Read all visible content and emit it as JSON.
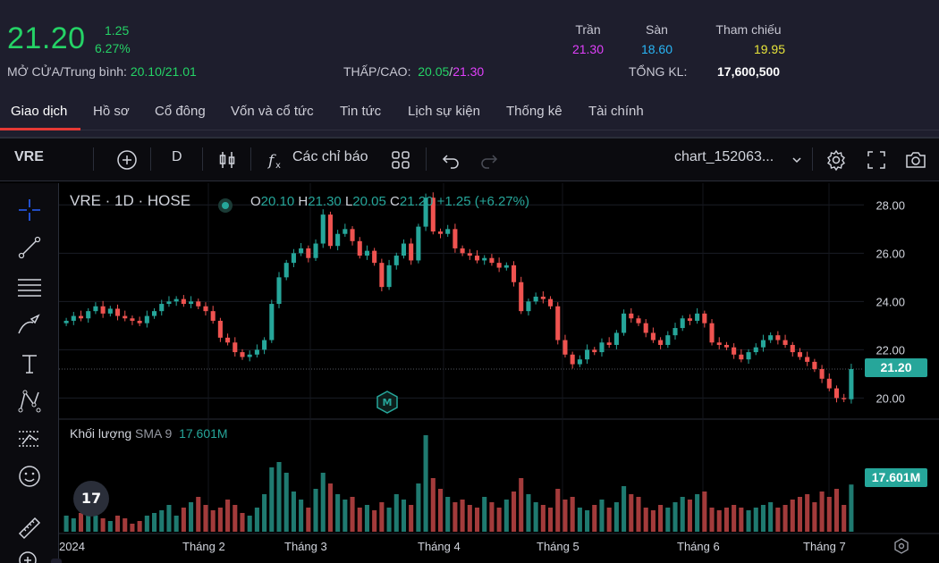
{
  "quote": {
    "price": "21.20",
    "change": "1.25",
    "change_pct": "6.27%",
    "open_avg_label": "MỞ CỬA/Trung bình:",
    "open": "20.10",
    "avg": "21.01",
    "lowhigh_label": "THẤP/CAO:",
    "low": "20.05",
    "high": "21.30",
    "ceiling_label": "Trần",
    "ceiling": "21.30",
    "floor_label": "Sàn",
    "floor": "18.60",
    "ref_label": "Tham chiếu",
    "ref": "19.95",
    "volume_label": "TỔNG KL:",
    "volume": "17,600,500"
  },
  "tabs": [
    "Giao dịch",
    "Hồ sơ",
    "Cổ đông",
    "Vốn và cổ tức",
    "Tin tức",
    "Lịch sự kiện",
    "Thống kê",
    "Tài chính"
  ],
  "toolbar": {
    "symbol": "VRE",
    "interval": "D",
    "indicators_label": "Các chỉ báo",
    "layout_name": "chart_152063..."
  },
  "chart_legend": {
    "title": "VRE · 1D · HOSE",
    "o_label": "O",
    "o": "20.10",
    "h_label": "H",
    "h": "21.30",
    "l_label": "L",
    "l": "20.05",
    "c_label": "C",
    "c": "21.20",
    "change": "+1.25 (+6.27%)"
  },
  "volume_legend": {
    "label": "Khối lượng",
    "sma": "SMA 9",
    "value": "17.601M"
  },
  "price_tag": "21.20",
  "volume_tag": "17.601M",
  "tv_logo": "17",
  "colors": {
    "up": "#26a69a",
    "down": "#ef5350",
    "up_vol": "#1f7a70",
    "down_vol": "#a33b3b"
  },
  "icons": [
    "add-icon",
    "candles-icon",
    "fx-icon",
    "grid-icon",
    "undo-icon",
    "redo-icon",
    "chevron-down-icon",
    "gear-icon",
    "fullscreen-icon",
    "camera-icon",
    "crosshair-icon",
    "trendline-icon",
    "fib-icon",
    "brush-icon",
    "text-icon",
    "pattern-icon",
    "forecast-icon",
    "emoji-icon",
    "ruler-icon",
    "zoom-icon",
    "reset-icon"
  ],
  "chart_data": {
    "type": "candlestick",
    "y_ticks": [
      "28.00",
      "26.00",
      "24.00",
      "22.00",
      "20.00"
    ],
    "ylim": [
      19.2,
      28.9
    ],
    "x_ticks": [
      "2024",
      "Tháng 2",
      "Tháng 3",
      "Tháng 4",
      "Tháng 5",
      "Tháng 6",
      "Tháng 7"
    ],
    "closes": [
      23.2,
      23.4,
      23.3,
      23.6,
      23.8,
      23.5,
      23.7,
      23.4,
      23.3,
      23.2,
      23.1,
      23.4,
      23.6,
      23.9,
      24.0,
      24.1,
      23.9,
      24.0,
      23.8,
      23.6,
      23.2,
      22.5,
      22.3,
      21.9,
      21.7,
      21.8,
      22.0,
      22.4,
      23.9,
      25.0,
      25.6,
      26.0,
      26.2,
      25.8,
      26.4,
      27.6,
      26.3,
      26.8,
      27.0,
      26.5,
      25.9,
      26.1,
      25.6,
      24.6,
      25.5,
      25.9,
      26.4,
      25.7,
      27.1,
      28.3,
      26.9,
      26.8,
      27.0,
      26.2,
      26.0,
      25.9,
      25.7,
      25.8,
      25.6,
      25.4,
      25.5,
      24.8,
      23.6,
      24.0,
      24.2,
      24.1,
      23.8,
      22.4,
      21.8,
      21.4,
      21.6,
      22.0,
      21.9,
      22.3,
      22.2,
      22.7,
      23.5,
      23.3,
      23.1,
      22.7,
      22.4,
      22.2,
      22.6,
      22.9,
      23.3,
      23.2,
      23.5,
      23.1,
      22.3,
      22.2,
      22.1,
      21.8,
      21.6,
      21.9,
      22.1,
      22.4,
      22.6,
      22.4,
      22.2,
      21.9,
      21.7,
      21.5,
      21.2,
      20.8,
      20.4,
      20.0,
      19.95,
      21.2
    ],
    "volume_ylim": [
      0,
      30
    ],
    "volume_m": [
      6,
      5,
      7,
      9,
      6,
      5,
      4,
      6,
      5,
      3,
      4,
      6,
      7,
      8,
      10,
      6,
      9,
      11,
      13,
      10,
      8,
      9,
      12,
      10,
      7,
      6,
      9,
      14,
      24,
      26,
      22,
      15,
      12,
      9,
      16,
      22,
      18,
      14,
      12,
      13,
      9,
      10,
      8,
      11,
      9,
      14,
      12,
      10,
      18,
      36,
      20,
      16,
      13,
      11,
      12,
      10,
      9,
      13,
      11,
      9,
      12,
      15,
      20,
      14,
      11,
      10,
      9,
      16,
      12,
      13,
      9,
      8,
      10,
      12,
      9,
      11,
      17,
      14,
      13,
      9,
      8,
      10,
      9,
      11,
      13,
      12,
      14,
      15,
      9,
      8,
      9,
      10,
      9,
      8,
      9,
      10,
      11,
      9,
      10,
      12,
      13,
      14,
      11,
      15,
      13,
      16,
      10,
      17.6
    ]
  }
}
